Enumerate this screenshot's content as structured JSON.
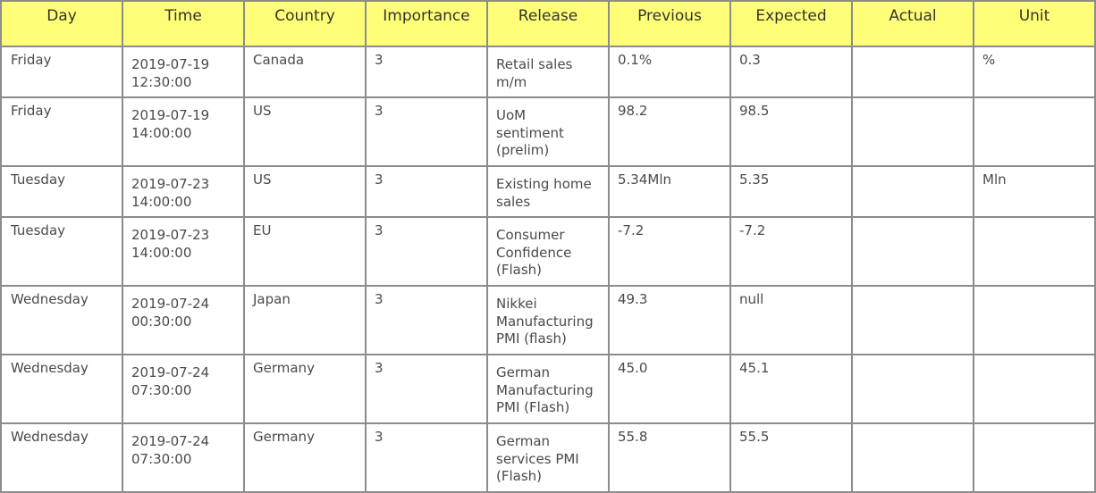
{
  "headers": {
    "day": "Day",
    "time": "Time",
    "country": "Country",
    "importance": "Importance",
    "release": "Release",
    "previous": "Previous",
    "expected": "Expected",
    "actual": "Actual",
    "unit": "Unit"
  },
  "rows": [
    {
      "day": "Friday",
      "time_date": "2019-07-19",
      "time_clock": "12:30:00",
      "country": "Canada",
      "importance": "3",
      "release": "Retail sales m/m",
      "previous": "0.1%",
      "expected": "0.3",
      "actual": "",
      "unit": "%"
    },
    {
      "day": "Friday",
      "time_date": "2019-07-19",
      "time_clock": "14:00:00",
      "country": "US",
      "importance": "3",
      "release": "UoM sentiment (prelim)",
      "previous": "98.2",
      "expected": "98.5",
      "actual": "",
      "unit": ""
    },
    {
      "day": "Tuesday",
      "time_date": "2019-07-23",
      "time_clock": "14:00:00",
      "country": "US",
      "importance": "3",
      "release": "Existing home sales",
      "previous": "5.34Mln",
      "expected": "5.35",
      "actual": "",
      "unit": "Mln"
    },
    {
      "day": "Tuesday",
      "time_date": "2019-07-23",
      "time_clock": "14:00:00",
      "country": "EU",
      "importance": "3",
      "release": "Consumer Confidence (Flash)",
      "previous": "-7.2",
      "expected": "-7.2",
      "actual": "",
      "unit": ""
    },
    {
      "day": "Wednesday",
      "time_date": "2019-07-24",
      "time_clock": "00:30:00",
      "country": "Japan",
      "importance": "3",
      "release": "Nikkei Manufacturing PMI (flash)",
      "previous": "49.3",
      "expected": "null",
      "actual": "",
      "unit": ""
    },
    {
      "day": "Wednesday",
      "time_date": "2019-07-24",
      "time_clock": "07:30:00",
      "country": "Germany",
      "importance": "3",
      "release": "German Manufacturing PMI (Flash)",
      "previous": "45.0",
      "expected": "45.1",
      "actual": "",
      "unit": ""
    },
    {
      "day": "Wednesday",
      "time_date": "2019-07-24",
      "time_clock": "07:30:00",
      "country": "Germany",
      "importance": "3",
      "release": "German services PMI (Flash)",
      "previous": "55.8",
      "expected": "55.5",
      "actual": "",
      "unit": ""
    }
  ],
  "colors": {
    "header_background": "#ffff77",
    "border": "#8c8c8c",
    "text": "#4a4a4a"
  }
}
